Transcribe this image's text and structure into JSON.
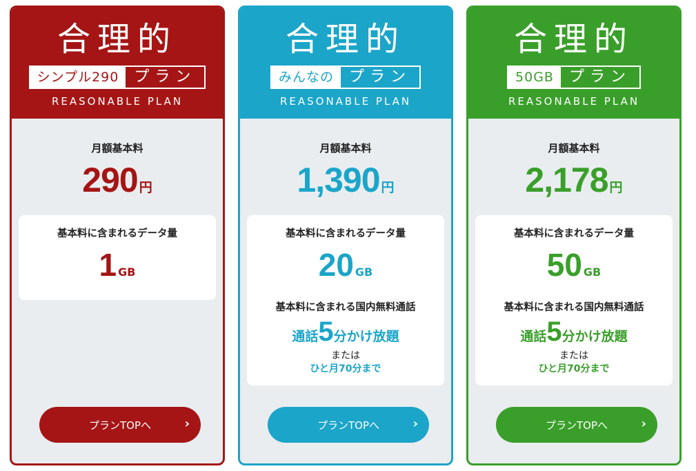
{
  "colors": {
    "red": "#a51515",
    "blue": "#1ba5c9",
    "green": "#3a9f2a"
  },
  "plans": [
    {
      "title": "合理的",
      "sub_name": "シンプル290",
      "sub_plan": "プラン",
      "reason": "REASONABLE PLAN",
      "fee_label": "月額基本料",
      "price": "290",
      "price_unit": "円",
      "data_label": "基本料に含まれるデータ量",
      "data_value": "1",
      "data_unit": "GB",
      "button_label": "プランTOPへ",
      "button_icon": "chevron-right-icon"
    },
    {
      "title": "合理的",
      "sub_name": "みんなの",
      "sub_plan": "プラン",
      "reason": "REASONABLE PLAN",
      "fee_label": "月額基本料",
      "price": "1,390",
      "price_unit": "円",
      "data_label": "基本料に含まれるデータ量",
      "data_value": "20",
      "data_unit": "GB",
      "call_label": "基本料に含まれる国内無料通話",
      "call_prefix": "通話",
      "call_number": "5",
      "call_suffix": "分かけ放題",
      "call_or": "または",
      "call_alt": "ひと月70分まで",
      "button_label": "プランTOPへ",
      "button_icon": "chevron-right-icon"
    },
    {
      "title": "合理的",
      "sub_name": "50GB",
      "sub_plan": "プラン",
      "reason": "REASONABLE PLAN",
      "fee_label": "月額基本料",
      "price": "2,178",
      "price_unit": "円",
      "data_label": "基本料に含まれるデータ量",
      "data_value": "50",
      "data_unit": "GB",
      "call_label": "基本料に含まれる国内無料通話",
      "call_prefix": "通話",
      "call_number": "5",
      "call_suffix": "分かけ放題",
      "call_or": "または",
      "call_alt": "ひと月70分まで",
      "button_label": "プランTOPへ",
      "button_icon": "chevron-right-icon"
    }
  ]
}
